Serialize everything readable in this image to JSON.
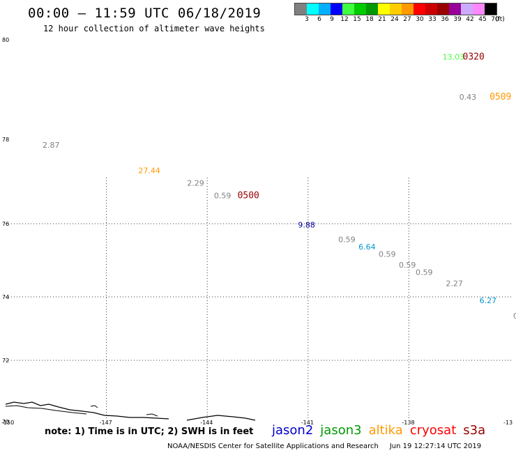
{
  "header": {
    "title": "00:00 – 11:59 UTC 06/18/2019",
    "subtitle": "12 hour collection of altimeter wave heights"
  },
  "legend": {
    "colors": [
      "#808080",
      "#00ffff",
      "#00b0ff",
      "#0000ff",
      "#40ff40",
      "#00cc00",
      "#009900",
      "#ffff00",
      "#ffcc00",
      "#ff9900",
      "#ff0000",
      "#cc0000",
      "#990000",
      "#990099",
      "#ccaaff",
      "#ff88ff",
      "#000000"
    ],
    "ticks": [
      "3",
      "6",
      "9",
      "12",
      "15",
      "18",
      "21",
      "24",
      "27",
      "30",
      "33",
      "36",
      "39",
      "42",
      "45",
      "70"
    ],
    "unit": "(ft)"
  },
  "map": {
    "lon_labels": [
      "-150",
      "-147",
      "-144",
      "-141",
      "-138",
      "-13"
    ],
    "lat_labels": [
      "80",
      "78",
      "76",
      "74",
      "72",
      "70"
    ],
    "observations": [
      {
        "text": "2.87",
        "color": "#808080",
        "lon": -148.9,
        "lat": 77.8
      },
      {
        "text": "27.44",
        "color": "#ff9900",
        "lon": -146.05,
        "lat": 77.2
      },
      {
        "text": "2.29",
        "color": "#808080",
        "lon": -144.6,
        "lat": 76.9
      },
      {
        "text": "0.59",
        "color": "#808080",
        "lon": -143.8,
        "lat": 76.6
      },
      {
        "text": "9.88",
        "color": "#000099",
        "lon": -141.3,
        "lat": 75.9
      },
      {
        "text": "0.59",
        "color": "#808080",
        "lon": -140.1,
        "lat": 75.5
      },
      {
        "text": "6.64",
        "color": "#0099cc",
        "lon": -139.5,
        "lat": 75.3
      },
      {
        "text": "0.59",
        "color": "#808080",
        "lon": -138.9,
        "lat": 75.1
      },
      {
        "text": "0.59",
        "color": "#808080",
        "lon": -138.3,
        "lat": 74.8
      },
      {
        "text": "0.59",
        "color": "#808080",
        "lon": -137.8,
        "lat": 74.6
      },
      {
        "text": "2.27",
        "color": "#808080",
        "lon": -136.9,
        "lat": 74.3
      },
      {
        "text": "6.27",
        "color": "#0099cc",
        "lon": -135.9,
        "lat": 73.8
      },
      {
        "text": "13.03",
        "color": "#40ff40",
        "lon": -137.0,
        "lat": 79.6
      },
      {
        "text": "0.43",
        "color": "#808080",
        "lon": -136.5,
        "lat": 78.8
      }
    ],
    "time_labels": [
      {
        "text": "0500",
        "color": "#990000",
        "lon": -143.1,
        "lat": 76.6
      },
      {
        "text": "0320",
        "color": "#990000",
        "lon": -136.4,
        "lat": 79.6
      },
      {
        "text": "0509",
        "color": "#ff9900",
        "lon": -135.6,
        "lat": 78.8
      }
    ]
  },
  "note": "note: 1) Time is in UTC; 2) SWH is in feet",
  "satellites": [
    {
      "name": "jason2",
      "color": "#0000cc"
    },
    {
      "name": "jason3",
      "color": "#009900"
    },
    {
      "name": "altika",
      "color": "#ff9900"
    },
    {
      "name": "cryosat",
      "color": "#ff0000"
    },
    {
      "name": "s3a",
      "color": "#990000"
    }
  ],
  "footer": {
    "credit": "NOAA/NESDIS Center for Satellite Applications and Research",
    "timestamp": "Jun 19 12:27:14 UTC 2019"
  }
}
